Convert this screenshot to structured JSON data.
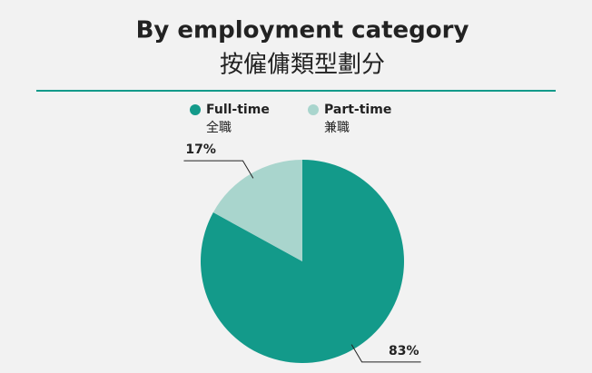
{
  "chart_data": {
    "type": "pie",
    "title": "By employment category",
    "subtitle": "按僱傭類型劃分",
    "categories": [
      "Full-time",
      "Part-time"
    ],
    "category_subtitles": [
      "全職",
      "兼職"
    ],
    "values": [
      83,
      17
    ],
    "value_labels": [
      "83%",
      "17%"
    ],
    "colors": [
      "#139a8a",
      "#a9d5cd"
    ],
    "legend": "top"
  }
}
